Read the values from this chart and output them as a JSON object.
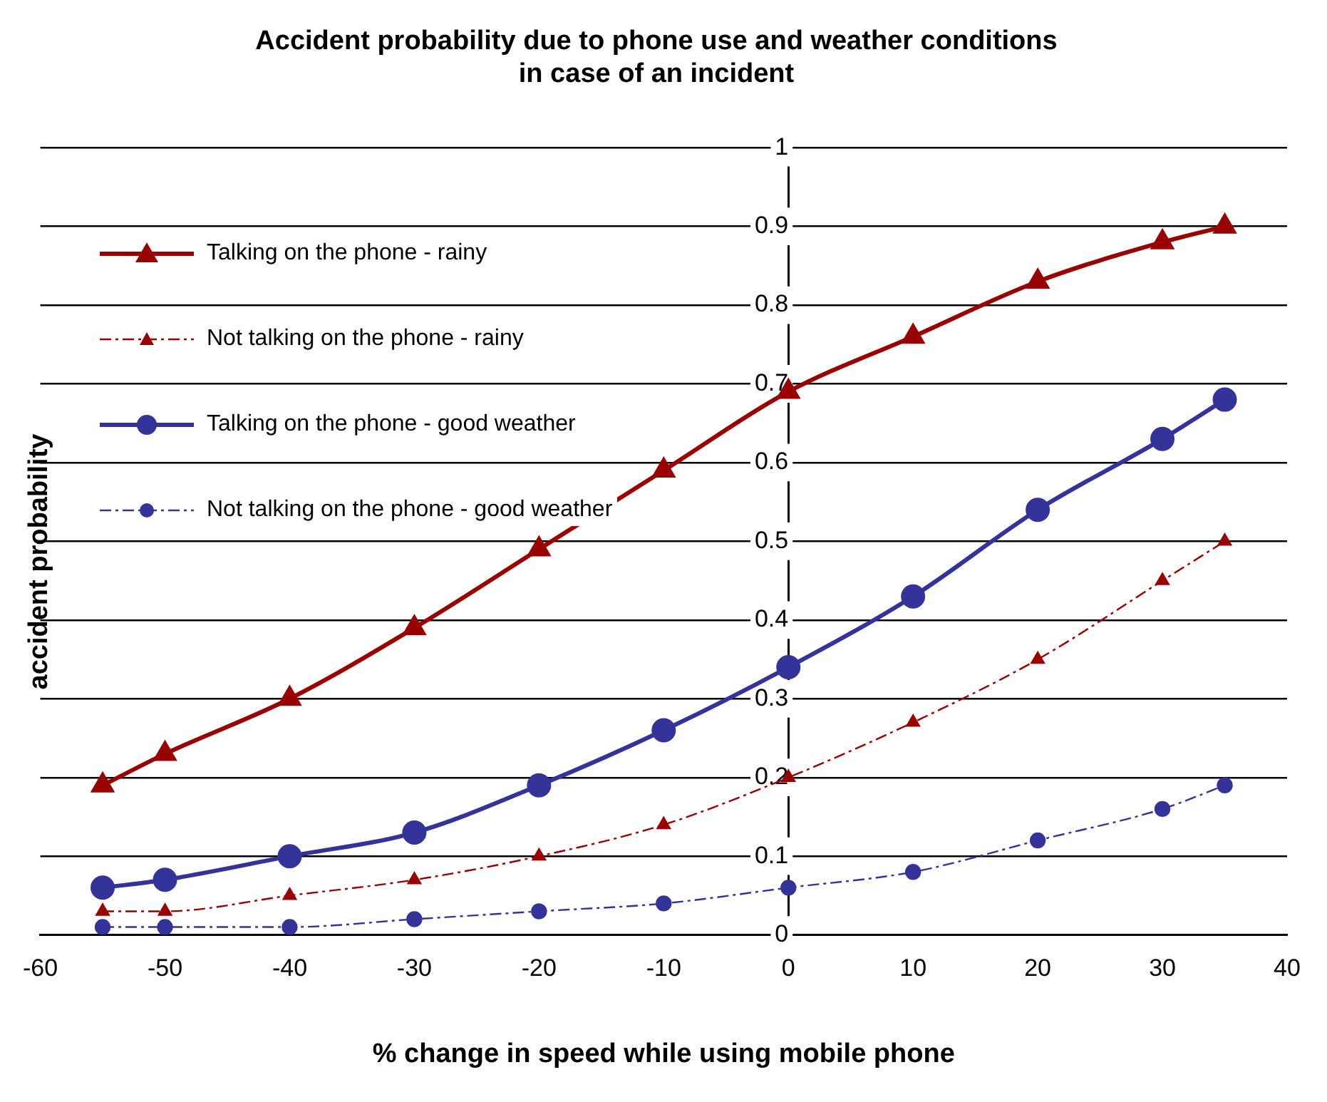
{
  "chart_data": {
    "type": "line",
    "title": "Accident probability due to phone use and weather conditions\nin case of an incident",
    "xlabel": "% change in speed while using mobile phone",
    "ylabel": "accident probability",
    "x": [
      -55,
      -50,
      -40,
      -30,
      -20,
      -10,
      0,
      10,
      20,
      30,
      35
    ],
    "series": [
      {
        "name": "Talking on the phone - rainy",
        "color": "#990000",
        "marker": "triangle",
        "line_style": "solid",
        "values": [
          0.19,
          0.23,
          0.3,
          0.39,
          0.49,
          0.59,
          0.69,
          0.76,
          0.83,
          0.88,
          0.9
        ]
      },
      {
        "name": "Not talking on the phone - rainy",
        "color": "#990000",
        "marker": "triangle",
        "line_style": "dashed",
        "values": [
          0.03,
          0.03,
          0.05,
          0.07,
          0.1,
          0.14,
          0.2,
          0.27,
          0.35,
          0.45,
          0.5
        ]
      },
      {
        "name": "Talking on the phone - good weather",
        "color": "#333399",
        "marker": "circle",
        "line_style": "solid",
        "values": [
          0.06,
          0.07,
          0.1,
          0.13,
          0.19,
          0.26,
          0.34,
          0.43,
          0.54,
          0.63,
          0.68
        ]
      },
      {
        "name": "Not talking on the phone - good weather",
        "color": "#333399",
        "marker": "circle",
        "line_style": "dashed",
        "values": [
          0.01,
          0.01,
          0.01,
          0.02,
          0.03,
          0.04,
          0.06,
          0.08,
          0.12,
          0.16,
          0.19
        ]
      }
    ],
    "xlim": [
      -60,
      40
    ],
    "xticks": [
      -60,
      -50,
      -40,
      -30,
      -20,
      -10,
      0,
      10,
      20,
      30,
      40
    ],
    "ylim": [
      0,
      1
    ],
    "yticks": [
      0,
      0.1,
      0.2,
      0.3,
      0.4,
      0.5,
      0.6,
      0.7,
      0.8,
      0.9,
      1
    ],
    "grid": "y",
    "legend": "top left"
  }
}
